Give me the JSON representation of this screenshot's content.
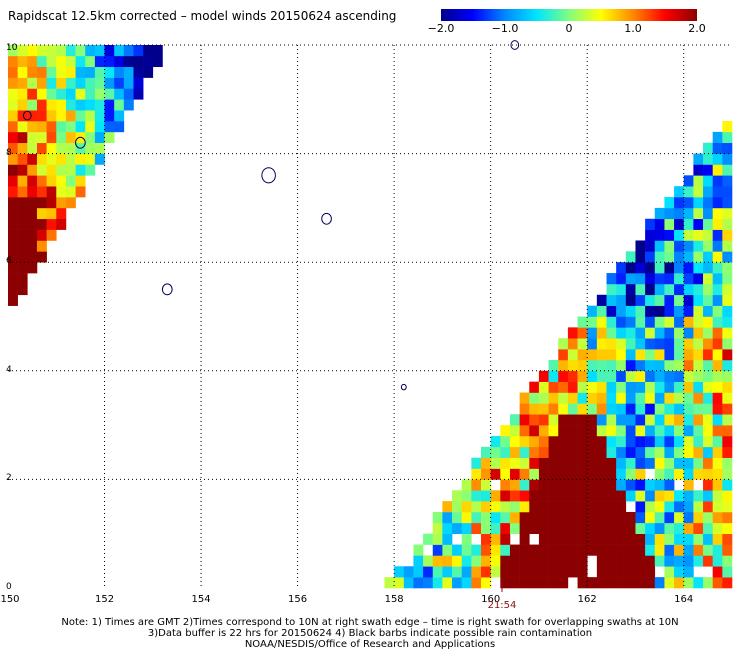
{
  "title": "Rapidscat 12.5km corrected – model winds 20150624 ascending",
  "colorbar": {
    "min": -2.0,
    "max": 2.0,
    "tick_labels": [
      "−2.0",
      "−1.0",
      "0",
      "1.0",
      "2.0"
    ],
    "tick_values": [
      -2.0,
      -1.0,
      0,
      1.0,
      2.0
    ],
    "colors": [
      "#00008b",
      "#0000ff",
      "#0088ff",
      "#00e5ff",
      "#7fff7f",
      "#ffff00",
      "#ff8800",
      "#ff0000",
      "#8b0000"
    ]
  },
  "chart_data": {
    "type": "heatmap",
    "title": "Rapidscat 12.5km corrected – model winds 20150624 ascending",
    "xlabel": "",
    "ylabel": "",
    "xlim": [
      150,
      165
    ],
    "ylim": [
      0,
      10
    ],
    "x_tick_labels": [
      "150",
      "152",
      "154",
      "156",
      "158",
      "160",
      "162",
      "164"
    ],
    "y_tick_labels": [
      "0",
      "2",
      "4",
      "6",
      "8",
      "10"
    ],
    "grid": true,
    "value_range": [
      -2.0,
      2.0
    ],
    "swaths": [
      {
        "region": "upper-left",
        "polygon": [
          [
            150,
            10
          ],
          [
            153.3,
            10
          ],
          [
            150,
            5.0
          ]
        ]
      },
      {
        "region": "lower-right",
        "polygon": [
          [
            157.8,
            0
          ],
          [
            165,
            0
          ],
          [
            165,
            8.8
          ]
        ]
      }
    ],
    "time_label": {
      "text": "21:54",
      "lon": 160.3
    }
  },
  "notes": {
    "line1": "Note: 1) Times are GMT 2)Times correspond to 10N at right swath edge – time is right swath for overlapping swaths at 10N",
    "line2": "3)Data buffer is 22 hrs for 20150624 4) Black barbs indicate possible rain contamination",
    "line3": "NOAA/NESDIS/Office of Research and Applications"
  }
}
